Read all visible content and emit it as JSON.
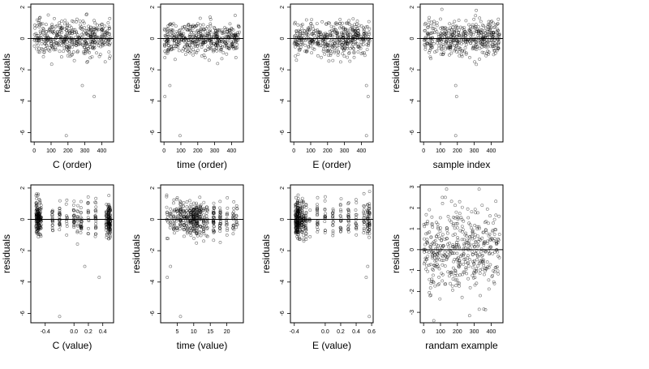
{
  "panels": [
    {
      "id": "c-order",
      "xlabel": "C (order)",
      "ylabel": "residuals",
      "xticks": [
        0,
        100,
        200,
        300,
        400
      ],
      "xticklabels": [
        "0",
        "100",
        "200",
        "300",
        "400"
      ],
      "yticks": [
        -6,
        -4,
        -2,
        0,
        2
      ],
      "yticklabels": [
        "-6",
        "-4",
        "-2",
        "0",
        "2"
      ],
      "xlim": [
        -20,
        470
      ],
      "ylim": [
        -6.6,
        2.2
      ],
      "xkind": "order"
    },
    {
      "id": "time-order",
      "xlabel": "time (order)",
      "ylabel": "residuals",
      "xticks": [
        0,
        100,
        200,
        300,
        400
      ],
      "xticklabels": [
        "0",
        "100",
        "200",
        "300",
        "400"
      ],
      "yticks": [
        -6,
        -4,
        -2,
        0,
        2
      ],
      "yticklabels": [
        "-6",
        "-4",
        "-2",
        "0",
        "2"
      ],
      "xlim": [
        -20,
        470
      ],
      "ylim": [
        -6.6,
        2.2
      ],
      "xkind": "order"
    },
    {
      "id": "e-order",
      "xlabel": "E (order)",
      "ylabel": "residuals",
      "xticks": [
        0,
        100,
        200,
        300,
        400
      ],
      "xticklabels": [
        "0",
        "100",
        "200",
        "300",
        "400"
      ],
      "yticks": [
        -6,
        -4,
        -2,
        0,
        2
      ],
      "yticklabels": [
        "-6",
        "-4",
        "-2",
        "0",
        "2"
      ],
      "xlim": [
        -20,
        470
      ],
      "ylim": [
        -6.6,
        2.2
      ],
      "xkind": "order"
    },
    {
      "id": "sample-index",
      "xlabel": "sample index",
      "ylabel": "residuals",
      "xticks": [
        0,
        100,
        200,
        300,
        400
      ],
      "xticklabels": [
        "0",
        "100",
        "200",
        "300",
        "400"
      ],
      "yticks": [
        -6,
        -4,
        -2,
        0,
        2
      ],
      "yticklabels": [
        "-6",
        "-4",
        "-2",
        "0",
        "2"
      ],
      "xlim": [
        -20,
        470
      ],
      "ylim": [
        -6.6,
        2.2
      ],
      "xkind": "order"
    },
    {
      "id": "c-value",
      "xlabel": "C (value)",
      "ylabel": "residuals",
      "xticks": [
        -0.4,
        0.0,
        0.2,
        0.4
      ],
      "xticklabels": [
        "-0.4",
        "0.0",
        "0.2",
        "0.4"
      ],
      "yticks": [
        -6,
        -4,
        -2,
        0,
        2
      ],
      "yticklabels": [
        "-6",
        "-4",
        "-2",
        "0",
        "2"
      ],
      "xlim": [
        -0.6,
        0.55
      ],
      "ylim": [
        -6.6,
        2.2
      ],
      "xkind": "cvalue"
    },
    {
      "id": "time-value",
      "xlabel": "time (value)",
      "ylabel": "residuals",
      "xticks": [
        5,
        10,
        15,
        20
      ],
      "xticklabels": [
        "5",
        "10",
        "15",
        "20"
      ],
      "yticks": [
        -6,
        -4,
        -2,
        0,
        2
      ],
      "yticklabels": [
        "-6",
        "-4",
        "-2",
        "0",
        "2"
      ],
      "xlim": [
        0,
        25
      ],
      "ylim": [
        -6.6,
        2.2
      ],
      "xkind": "tvalue"
    },
    {
      "id": "e-value",
      "xlabel": "E (value)",
      "ylabel": "residuals",
      "xticks": [
        -0.4,
        0.0,
        0.2,
        0.4,
        0.6
      ],
      "xticklabels": [
        "-0.4",
        "0.0",
        "0.2",
        "0.4",
        "0.6"
      ],
      "yticks": [
        -6,
        -4,
        -2,
        0,
        2
      ],
      "yticklabels": [
        "-6",
        "-4",
        "-2",
        "0",
        "2"
      ],
      "xlim": [
        -0.45,
        0.62
      ],
      "ylim": [
        -6.6,
        2.2
      ],
      "xkind": "evalue"
    },
    {
      "id": "random-example",
      "xlabel": "randam example",
      "ylabel": "residuals",
      "xticks": [
        0,
        100,
        200,
        300,
        400
      ],
      "xticklabels": [
        "0",
        "100",
        "200",
        "300",
        "400"
      ],
      "yticks": [
        -3,
        -2,
        -1,
        0,
        1,
        2,
        3
      ],
      "yticklabels": [
        "-3",
        "-2",
        "-1",
        "0",
        "1",
        "2",
        "3"
      ],
      "xlim": [
        -20,
        470
      ],
      "ylim": [
        -3.5,
        3.1
      ],
      "xkind": "random"
    }
  ],
  "chart_data": [
    {
      "type": "scatter",
      "xlabel": "C (order)",
      "ylabel": "residuals",
      "xlim": [
        -20,
        470
      ],
      "ylim": [
        -6.6,
        2.2
      ],
      "reference_line_y": 0,
      "n_points": 450,
      "outliers": [
        {
          "x": 190,
          "y": -6.2
        },
        {
          "x": 285,
          "y": -3.0
        },
        {
          "x": 355,
          "y": -3.7
        }
      ]
    },
    {
      "type": "scatter",
      "xlabel": "time (order)",
      "ylabel": "residuals",
      "xlim": [
        -20,
        470
      ],
      "ylim": [
        -6.6,
        2.2
      ],
      "reference_line_y": 0,
      "n_points": 450,
      "outliers": [
        {
          "x": 95,
          "y": -6.2
        },
        {
          "x": 5,
          "y": -3.7
        },
        {
          "x": 35,
          "y": -3.0
        }
      ]
    },
    {
      "type": "scatter",
      "xlabel": "E (order)",
      "ylabel": "residuals",
      "xlim": [
        -20,
        470
      ],
      "ylim": [
        -6.6,
        2.2
      ],
      "reference_line_y": 0,
      "n_points": 450,
      "outliers": [
        {
          "x": 430,
          "y": -6.2
        },
        {
          "x": 430,
          "y": -3.0
        },
        {
          "x": 440,
          "y": -3.7
        }
      ]
    },
    {
      "type": "scatter",
      "xlabel": "sample index",
      "ylabel": "residuals",
      "xlim": [
        -20,
        470
      ],
      "ylim": [
        -6.6,
        2.2
      ],
      "reference_line_y": 0,
      "n_points": 450,
      "outliers": [
        {
          "x": 190,
          "y": -6.2
        },
        {
          "x": 190,
          "y": -3.0
        },
        {
          "x": 195,
          "y": -3.7
        }
      ]
    },
    {
      "type": "scatter",
      "xlabel": "C (value)",
      "ylabel": "residuals",
      "xlim": [
        -0.6,
        0.55
      ],
      "ylim": [
        -6.6,
        2.2
      ],
      "reference_line_y": 0,
      "n_points": 450,
      "outliers": [
        {
          "x": -0.2,
          "y": -6.2
        },
        {
          "x": 0.15,
          "y": -3.0
        },
        {
          "x": 0.35,
          "y": -3.7
        }
      ]
    },
    {
      "type": "scatter",
      "xlabel": "time (value)",
      "ylabel": "residuals",
      "xlim": [
        0,
        25
      ],
      "ylim": [
        -6.6,
        2.2
      ],
      "reference_line_y": 0,
      "n_points": 450,
      "outliers": [
        {
          "x": 6,
          "y": -6.2
        },
        {
          "x": 3,
          "y": -3.0
        },
        {
          "x": 2,
          "y": -3.7
        }
      ]
    },
    {
      "type": "scatter",
      "xlabel": "E (value)",
      "ylabel": "residuals",
      "xlim": [
        -0.45,
        0.62
      ],
      "ylim": [
        -6.6,
        2.2
      ],
      "reference_line_y": 0,
      "n_points": 450,
      "outliers": [
        {
          "x": 0.57,
          "y": -6.2
        },
        {
          "x": 0.55,
          "y": -3.0
        },
        {
          "x": 0.53,
          "y": -3.7
        }
      ]
    },
    {
      "type": "scatter",
      "xlabel": "randam example",
      "ylabel": "residuals",
      "xlim": [
        -20,
        470
      ],
      "ylim": [
        -3.5,
        3.1
      ],
      "reference_line_y": 0,
      "n_points": 450,
      "outliers": [
        {
          "x": 60,
          "y": -3.4
        }
      ]
    }
  ]
}
